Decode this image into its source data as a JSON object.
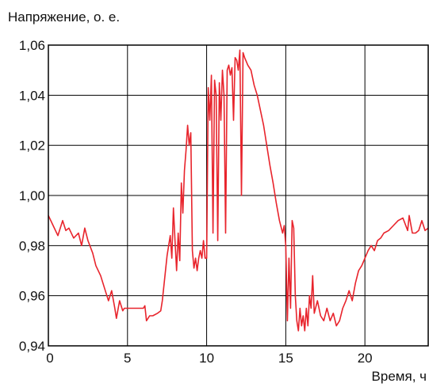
{
  "chart_data": {
    "type": "line",
    "title": "",
    "ylabel": "Напряжение, о. е.",
    "xlabel": "Время, ч",
    "xlim": [
      0,
      24
    ],
    "ylim": [
      0.94,
      1.06
    ],
    "x_ticks": [
      0,
      5,
      10,
      15,
      20
    ],
    "x_tick_labels": [
      "0",
      "5",
      "10",
      "15",
      "20"
    ],
    "y_ticks": [
      0.94,
      0.96,
      0.98,
      1.0,
      1.02,
      1.04,
      1.06
    ],
    "y_tick_labels": [
      "0,94",
      "0,96",
      "0,98",
      "1,00",
      "1,02",
      "1,04",
      "1,06"
    ],
    "grid": true,
    "series": [
      {
        "color": "#e8242c",
        "x": [
          0,
          0.3,
          0.6,
          0.9,
          1.1,
          1.3,
          1.6,
          1.9,
          2.1,
          2.3,
          2.5,
          2.8,
          3.0,
          3.3,
          3.6,
          3.8,
          4.0,
          4.2,
          4.3,
          4.5,
          4.7,
          4.8,
          5.0,
          5.5,
          6.0,
          6.1,
          6.2,
          6.4,
          6.6,
          6.9,
          7.1,
          7.2,
          7.5,
          7.6,
          7.7,
          7.8,
          7.9,
          8.0,
          8.1,
          8.2,
          8.3,
          8.4,
          8.5,
          8.6,
          8.7,
          8.8,
          8.9,
          9.0,
          9.1,
          9.2,
          9.3,
          9.4,
          9.5,
          9.6,
          9.7,
          9.8,
          9.9,
          10.0,
          10.1,
          10.2,
          10.3,
          10.4,
          10.5,
          10.6,
          10.7,
          10.8,
          10.9,
          11.0,
          11.1,
          11.2,
          11.3,
          11.4,
          11.5,
          11.6,
          11.7,
          11.8,
          11.9,
          12.0,
          12.1,
          12.2,
          12.3,
          12.4,
          12.6,
          12.8,
          13.0,
          13.2,
          13.4,
          13.6,
          13.8,
          14.0,
          14.2,
          14.4,
          14.6,
          14.8,
          14.9,
          15.0,
          15.1,
          15.2,
          15.3,
          15.4,
          15.5,
          15.6,
          15.7,
          15.8,
          15.9,
          16.0,
          16.1,
          16.2,
          16.3,
          16.4,
          16.5,
          16.6,
          16.7,
          16.8,
          17.0,
          17.2,
          17.4,
          17.6,
          17.8,
          18.0,
          18.2,
          18.4,
          18.6,
          18.8,
          19.0,
          19.2,
          19.4,
          19.6,
          19.8,
          20.0,
          20.2,
          20.4,
          20.6,
          20.8,
          21.0,
          21.2,
          21.5,
          21.8,
          22.1,
          22.4,
          22.7,
          22.8,
          23.0,
          23.2,
          23.4,
          23.6,
          23.8,
          24.0
        ],
        "y": [
          0.992,
          0.988,
          0.984,
          0.99,
          0.986,
          0.987,
          0.983,
          0.985,
          0.98,
          0.987,
          0.982,
          0.977,
          0.972,
          0.968,
          0.962,
          0.958,
          0.962,
          0.955,
          0.951,
          0.958,
          0.954,
          0.955,
          0.955,
          0.955,
          0.955,
          0.956,
          0.95,
          0.952,
          0.952,
          0.953,
          0.954,
          0.958,
          0.976,
          0.98,
          0.984,
          0.975,
          0.995,
          0.982,
          0.97,
          0.985,
          0.974,
          1.005,
          0.993,
          1.01,
          1.018,
          1.028,
          1.02,
          1.025,
          0.978,
          0.971,
          0.975,
          0.97,
          0.975,
          0.978,
          0.975,
          0.982,
          0.975,
          0.975,
          1.043,
          1.03,
          1.048,
          0.985,
          1.046,
          1.04,
          0.982,
          1.045,
          1.03,
          1.05,
          1.04,
          0.985,
          1.05,
          1.052,
          1.048,
          1.051,
          1.03,
          1.055,
          1.054,
          1.05,
          1.058,
          1.0,
          1.057,
          1.055,
          1.052,
          1.05,
          1.044,
          1.04,
          1.034,
          1.028,
          1.02,
          1.012,
          1.005,
          0.997,
          0.99,
          0.985,
          0.988,
          0.98,
          0.95,
          0.975,
          0.955,
          0.99,
          0.987,
          0.96,
          0.95,
          0.946,
          0.955,
          0.948,
          0.952,
          0.946,
          0.955,
          0.948,
          0.96,
          0.955,
          0.968,
          0.953,
          0.958,
          0.952,
          0.95,
          0.955,
          0.95,
          0.953,
          0.948,
          0.95,
          0.955,
          0.958,
          0.962,
          0.958,
          0.965,
          0.97,
          0.972,
          0.975,
          0.978,
          0.98,
          0.978,
          0.982,
          0.983,
          0.985,
          0.986,
          0.988,
          0.99,
          0.991,
          0.986,
          0.992,
          0.985,
          0.985,
          0.986,
          0.99,
          0.986,
          0.987
        ]
      }
    ]
  }
}
